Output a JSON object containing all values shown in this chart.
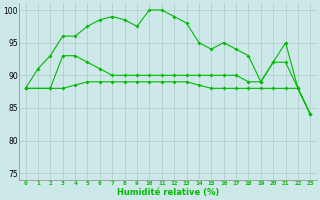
{
  "xlabel": "Humidité relative (%)",
  "background_color": "#cce8e8",
  "grid_color": "#b0c8c8",
  "line_color": "#00bb00",
  "x": [
    0,
    1,
    2,
    3,
    4,
    5,
    6,
    7,
    8,
    9,
    10,
    11,
    12,
    13,
    14,
    15,
    16,
    17,
    18,
    19,
    20,
    21,
    22,
    23
  ],
  "line1": [
    88,
    91,
    93,
    96,
    96,
    97.5,
    98.5,
    99,
    98.5,
    97.5,
    100,
    100,
    99,
    98,
    95,
    94,
    95,
    94,
    93,
    89,
    92,
    95,
    88,
    84
  ],
  "line2": [
    88,
    null,
    88,
    93,
    93,
    92,
    91,
    90,
    90,
    90,
    90,
    90,
    90,
    90,
    90,
    90,
    90,
    90,
    89,
    89,
    92,
    92,
    88,
    84
  ],
  "line3": [
    88,
    null,
    88,
    88,
    88.5,
    89,
    89,
    89,
    89,
    89,
    89,
    89,
    89,
    89,
    88.5,
    88,
    88,
    88,
    88,
    88,
    88,
    88,
    88,
    84
  ],
  "ylim": [
    74,
    101
  ],
  "yticks": [
    75,
    80,
    85,
    90,
    95,
    100
  ],
  "xticks": [
    0,
    1,
    2,
    3,
    4,
    5,
    6,
    7,
    8,
    9,
    10,
    11,
    12,
    13,
    14,
    15,
    16,
    17,
    18,
    19,
    20,
    21,
    22,
    23
  ]
}
